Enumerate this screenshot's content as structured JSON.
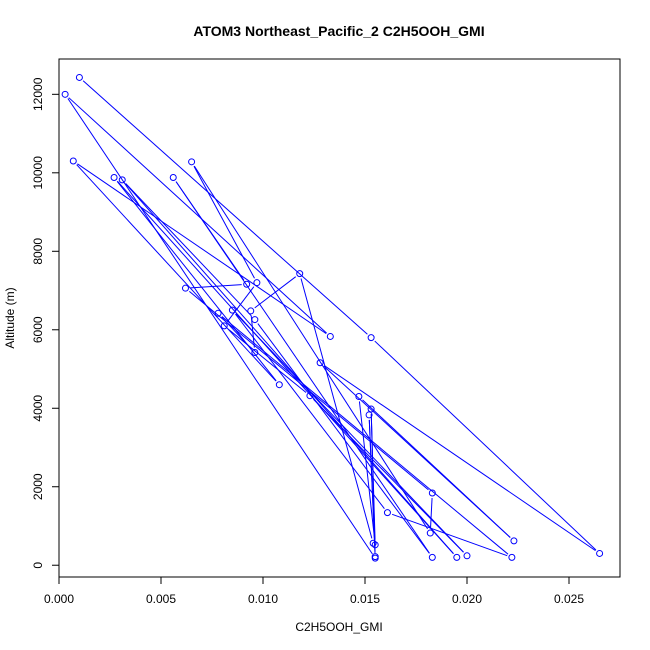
{
  "chart_data": {
    "type": "line",
    "title": "ATOM3 Northeast_Pacific_2 C2H5OOH_GMI",
    "xlabel": "C2H5OOH_GMI",
    "ylabel": "Altitude (m)",
    "xlim": [
      0.0,
      0.0275
    ],
    "ylim": [
      -300,
      12900
    ],
    "x_ticks": [
      0.0,
      0.005,
      0.01,
      0.015,
      0.02,
      0.025
    ],
    "x_tick_labels": [
      "0.000",
      "0.005",
      "0.010",
      "0.015",
      "0.020",
      "0.025"
    ],
    "y_ticks": [
      0,
      2000,
      4000,
      6000,
      8000,
      10000,
      12000
    ],
    "y_tick_labels": [
      "0",
      "2000",
      "4000",
      "6000",
      "8000",
      "10000",
      "12000"
    ],
    "grid": false,
    "legend": "none",
    "line_style": "b (points joined by lines, gaps at markers)",
    "marker": "open circle",
    "series": [
      {
        "color": "#0000ff",
        "points": [
          {
            "x": 0.001,
            "y": 12430
          },
          {
            "x": 0.0153,
            "y": 5800
          },
          {
            "x": 0.0265,
            "y": 300
          },
          {
            "x": 0.0128,
            "y": 5160
          },
          {
            "x": 0.0223,
            "y": 620
          },
          {
            "x": 0.0147,
            "y": 4300
          },
          {
            "x": 0.0155,
            "y": 520
          },
          {
            "x": 0.0153,
            "y": 3980
          },
          {
            "x": 0.0155,
            "y": 220
          },
          {
            "x": 0.0152,
            "y": 3830
          },
          {
            "x": 0.0155,
            "y": 180
          },
          {
            "x": 0.0003,
            "y": 12000
          },
          {
            "x": 0.0133,
            "y": 5830
          },
          {
            "x": 0.0007,
            "y": 10300
          },
          {
            "x": 0.0108,
            "y": 4600
          },
          {
            "x": 0.0027,
            "y": 9880
          },
          {
            "x": 0.0195,
            "y": 200
          },
          {
            "x": 0.0031,
            "y": 9820
          },
          {
            "x": 0.0096,
            "y": 6260
          },
          {
            "x": 0.0183,
            "y": 200
          },
          {
            "x": 0.0056,
            "y": 9880
          },
          {
            "x": 0.0092,
            "y": 7160
          },
          {
            "x": 0.0062,
            "y": 7060
          },
          {
            "x": 0.0183,
            "y": 1840
          },
          {
            "x": 0.0182,
            "y": 820
          },
          {
            "x": 0.0065,
            "y": 10280
          },
          {
            "x": 0.0097,
            "y": 7200
          },
          {
            "x": 0.0081,
            "y": 6100
          },
          {
            "x": 0.0123,
            "y": 4320
          },
          {
            "x": 0.02,
            "y": 240
          },
          {
            "x": 0.0085,
            "y": 6500
          },
          {
            "x": 0.0161,
            "y": 1340
          },
          {
            "x": 0.0222,
            "y": 200
          },
          {
            "x": 0.0078,
            "y": 6420
          },
          {
            "x": 0.0096,
            "y": 5420
          },
          {
            "x": 0.0094,
            "y": 6480
          },
          {
            "x": 0.0118,
            "y": 7430
          },
          {
            "x": 0.0154,
            "y": 560
          }
        ]
      }
    ]
  }
}
